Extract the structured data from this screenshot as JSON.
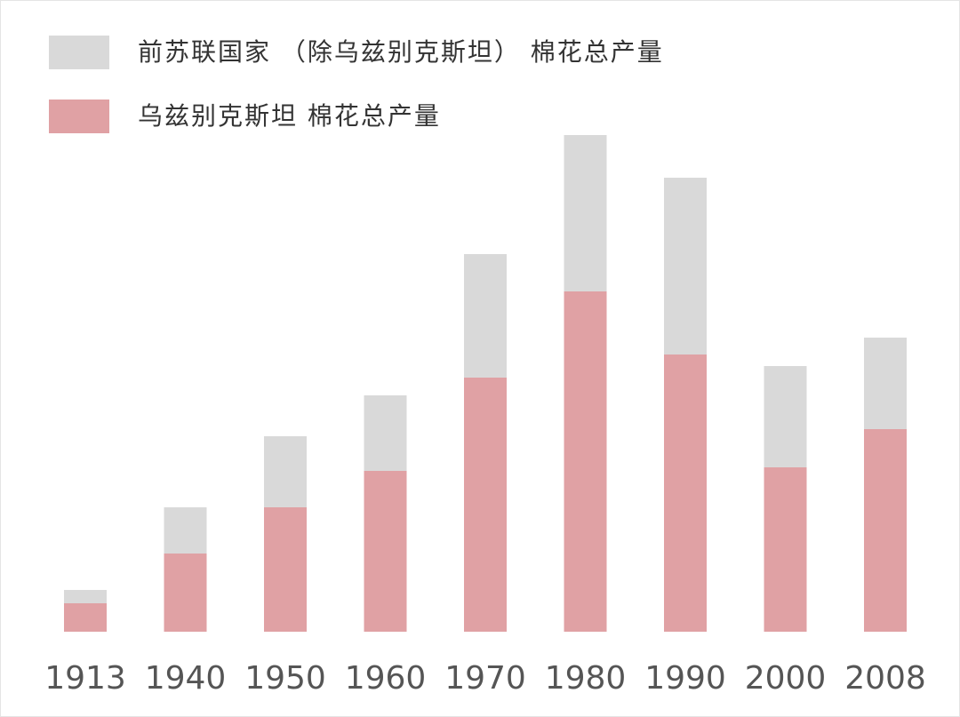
{
  "chart_data": {
    "type": "stacked-bar",
    "categories": [
      "1913",
      "1940",
      "1950",
      "1960",
      "1970",
      "1980",
      "1990",
      "2000",
      "2008"
    ],
    "series": [
      {
        "name": "乌兹别克斯坦 棉花总产量",
        "color": "#e0a1a4",
        "values": [
          32,
          88,
          140,
          181,
          286,
          383,
          312,
          185,
          228
        ]
      },
      {
        "name": "前苏联国家 （除乌兹别克斯坦） 棉花总产量",
        "color": "#d9d9d9",
        "values": [
          15,
          52,
          80,
          85,
          139,
          176,
          199,
          114,
          103
        ]
      }
    ],
    "ylim": [
      0,
      600
    ]
  }
}
